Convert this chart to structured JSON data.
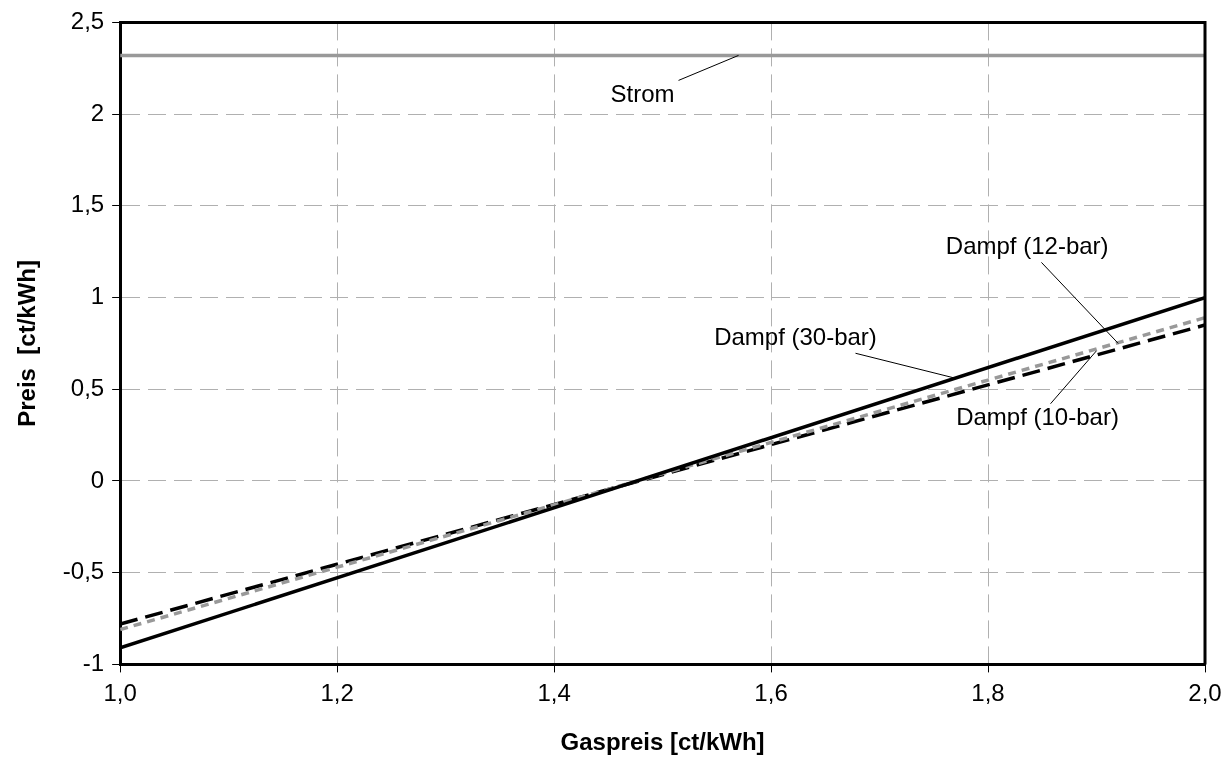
{
  "chart_data": {
    "type": "line",
    "xlabel": "Gaspreis [ct/kWh]",
    "ylabel": "Preis  [ct/kWh]",
    "xlim": [
      1.0,
      2.0
    ],
    "ylim": [
      -1,
      2.5
    ],
    "xticks": [
      {
        "value": 1.0,
        "label": "1,0"
      },
      {
        "value": 1.2,
        "label": "1,2"
      },
      {
        "value": 1.4,
        "label": "1,4"
      },
      {
        "value": 1.6,
        "label": "1,6"
      },
      {
        "value": 1.8,
        "label": "1,8"
      },
      {
        "value": 2.0,
        "label": "2,0"
      }
    ],
    "yticks": [
      {
        "value": -1,
        "label": "-1"
      },
      {
        "value": -0.5,
        "label": "-0,5"
      },
      {
        "value": 0,
        "label": "0"
      },
      {
        "value": 0.5,
        "label": "0,5"
      },
      {
        "value": 1,
        "label": "1"
      },
      {
        "value": 1.5,
        "label": "1,5"
      },
      {
        "value": 2,
        "label": "2"
      },
      {
        "value": 2.5,
        "label": "2,5"
      }
    ],
    "x": [
      1.0,
      2.0
    ],
    "grid": true,
    "legend": false,
    "marker": "none",
    "series": [
      {
        "color": "#999999",
        "values": [
          2.32,
          2.32
        ],
        "line_style": "solid"
      },
      {
        "color": "#000000",
        "values": [
          -0.91,
          1.0
        ],
        "line_style": "solid"
      },
      {
        "color": "#999999",
        "values": [
          -0.81,
          0.89
        ],
        "line_style": "dotted"
      },
      {
        "color": "#000000",
        "values": [
          -0.78,
          0.85
        ],
        "line_style": "dashed"
      }
    ],
    "annotations": [
      {
        "text": "Strom",
        "x": 1.57,
        "y": 2.32
      },
      {
        "text": "Dampf (12-bar)",
        "x": 1.92,
        "y": 0.75
      },
      {
        "text": "Dampf (30-bar)",
        "x": 1.77,
        "y": 0.56
      },
      {
        "text": "Dampf (10-bar)",
        "x": 1.9,
        "y": 0.71
      }
    ]
  }
}
